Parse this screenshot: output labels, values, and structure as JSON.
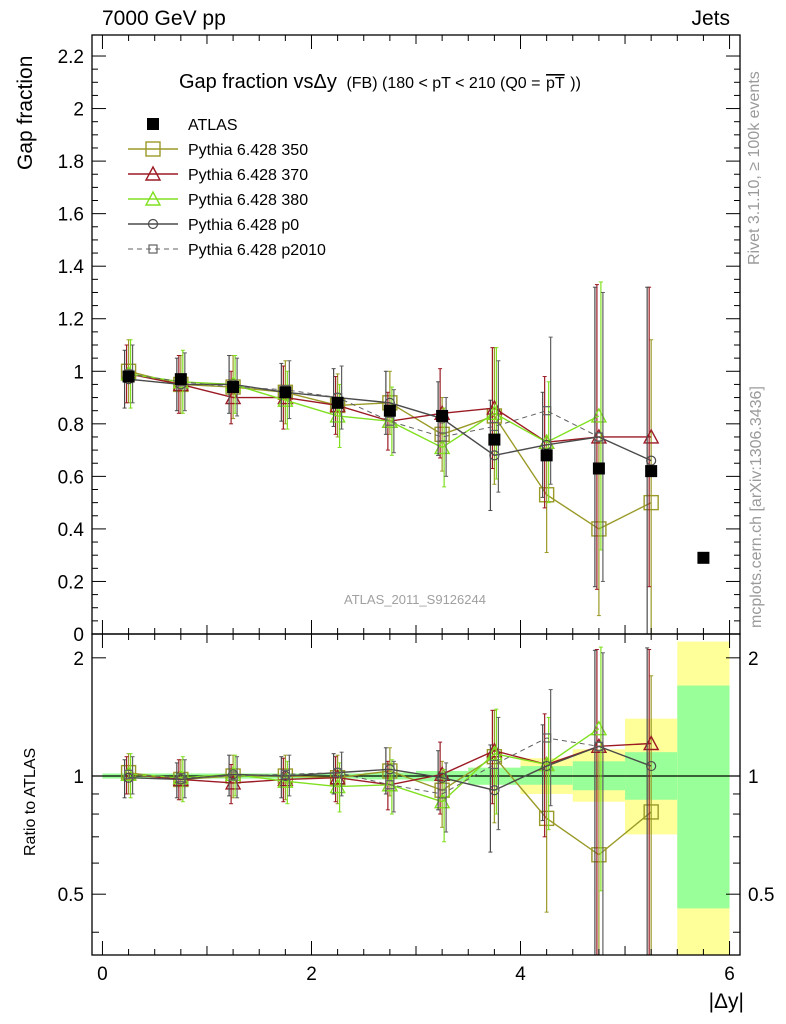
{
  "header": {
    "left": "7000 GeV pp",
    "right": "Jets"
  },
  "side_labels": {
    "rivet": "Rivet 3.1.10, ≥ 100k events",
    "mcplots": "mcplots.cern.ch [arXiv:1306.3436]"
  },
  "watermark": "ATLAS_2011_S9126244",
  "colors": {
    "ATLAS": "#000000",
    "py350": "#9a9a28",
    "py370": "#9b1a24",
    "py380": "#80e020",
    "pyp0": "#4a4a4a",
    "pyp2010": "#606060",
    "band_inner": "#99ff99",
    "band_outer": "#ffff99"
  },
  "chart_data": [
    {
      "type": "line",
      "title": "Gap fraction vsΔy (FB) (180 < pT < 210 (Q0 =pT))",
      "title_main": "Gap fraction vsΔy",
      "title_sub": "(FB) (180 < pT < 210 (Q0 =",
      "title_pt": "pT",
      "title_close": "))",
      "xlabel": "",
      "ylabel": "Gap fraction",
      "xlim": [
        -0.1,
        6.1
      ],
      "ylim": [
        0,
        2.28
      ],
      "yticks": [
        0,
        0.2,
        0.4,
        0.6,
        0.8,
        1,
        1.2,
        1.4,
        1.6,
        1.8,
        2,
        2.2
      ],
      "ytick_labels": [
        "0",
        "0.2",
        "0.4",
        "0.6",
        "0.8",
        "1",
        "1.2",
        "1.4",
        "1.6",
        "1.8",
        "2",
        "2.2"
      ],
      "legend": "top-left",
      "series": [
        {
          "name": "ATLAS",
          "marker": "filled-square",
          "line": "none",
          "color_key": "ATLAS",
          "x": [
            0.25,
            0.75,
            1.25,
            1.75,
            2.25,
            2.75,
            3.25,
            3.75,
            4.25,
            4.75,
            5.25,
            5.75
          ],
          "y": [
            0.98,
            0.97,
            0.94,
            0.92,
            0.88,
            0.85,
            0.83,
            0.74,
            0.68,
            0.63,
            0.62,
            0.29
          ]
        },
        {
          "name": "Pythia 6.428 350",
          "marker": "open-square",
          "line": "solid",
          "color_key": "py350",
          "x": [
            0.25,
            0.75,
            1.25,
            1.75,
            2.25,
            2.75,
            3.25,
            3.75,
            4.25,
            4.75,
            5.25
          ],
          "y": [
            1.0,
            0.95,
            0.94,
            0.92,
            0.87,
            0.88,
            0.76,
            0.83,
            0.53,
            0.4,
            0.5
          ],
          "err": [
            0.12,
            0.11,
            0.12,
            0.12,
            0.12,
            0.12,
            0.14,
            0.26,
            0.22,
            0.33,
            0.62
          ]
        },
        {
          "name": "Pythia 6.428 370",
          "marker": "open-triangle",
          "line": "solid",
          "color_key": "py370",
          "x": [
            0.25,
            0.75,
            1.25,
            1.75,
            2.25,
            2.75,
            3.25,
            3.75,
            4.25,
            4.75,
            5.25
          ],
          "y": [
            0.99,
            0.95,
            0.9,
            0.9,
            0.87,
            0.81,
            0.84,
            0.86,
            0.73,
            0.75,
            0.75
          ],
          "err": [
            0.11,
            0.11,
            0.1,
            0.12,
            0.11,
            0.11,
            0.17,
            0.23,
            0.25,
            0.58,
            0.57
          ]
        },
        {
          "name": "Pythia 6.428 380",
          "marker": "open-triangle",
          "line": "solid",
          "color_key": "py380",
          "x": [
            0.25,
            0.75,
            1.25,
            1.75,
            2.25,
            2.75,
            3.25,
            3.75,
            4.25,
            4.75
          ],
          "y": [
            0.99,
            0.96,
            0.95,
            0.89,
            0.83,
            0.81,
            0.71,
            0.84,
            0.73,
            0.83
          ],
          "err": [
            0.13,
            0.12,
            0.11,
            0.11,
            0.12,
            0.13,
            0.15,
            0.25,
            0.23,
            0.51
          ]
        },
        {
          "name": "Pythia 6.428 p0",
          "marker": "open-circle",
          "line": "solid",
          "color_key": "pyp0",
          "x": [
            0.25,
            0.75,
            1.25,
            1.75,
            2.25,
            2.75,
            3.25,
            3.75,
            4.25,
            4.75,
            5.25
          ],
          "y": [
            0.97,
            0.95,
            0.95,
            0.92,
            0.9,
            0.88,
            0.82,
            0.68,
            0.72,
            0.75,
            0.66
          ],
          "err": [
            0.11,
            0.1,
            0.11,
            0.11,
            0.11,
            0.12,
            0.14,
            0.21,
            0.2,
            0.57,
            0.66
          ]
        },
        {
          "name": "Pythia 6.428 p2010",
          "marker": "open-square-small",
          "line": "dashed",
          "color_key": "pyp2010",
          "x": [
            0.25,
            0.75,
            1.25,
            1.75,
            2.25,
            2.75,
            3.25,
            3.75,
            4.25,
            4.75
          ],
          "y": [
            0.99,
            0.96,
            0.94,
            0.93,
            0.9,
            0.81,
            0.75,
            0.79,
            0.85,
            0.75
          ],
          "err": [
            0.11,
            0.11,
            0.11,
            0.11,
            0.12,
            0.12,
            0.15,
            0.25,
            0.28,
            0.55
          ]
        }
      ]
    },
    {
      "type": "line",
      "xlabel": "|Δy|",
      "ylabel": "Ratio to ATLAS",
      "xlim": [
        -0.1,
        6.1
      ],
      "ylim": [
        0.35,
        2.3
      ],
      "log_y": true,
      "xticks": [
        0,
        2,
        4,
        6
      ],
      "xtick_labels": [
        "0",
        "2",
        "4",
        "6"
      ],
      "yticks": [
        0.5,
        1,
        2
      ],
      "ytick_labels": [
        "0.5",
        "1",
        "2"
      ],
      "bands": {
        "x_edges": [
          0.0,
          0.5,
          1.0,
          1.5,
          2.0,
          2.5,
          3.0,
          3.5,
          4.0,
          4.5,
          5.0,
          5.5,
          6.0
        ],
        "inner_lo": [
          0.985,
          0.985,
          0.985,
          0.985,
          0.985,
          0.98,
          0.97,
          0.95,
          0.95,
          0.92,
          0.87,
          0.46
        ],
        "inner_hi": [
          1.015,
          1.015,
          1.015,
          1.015,
          1.015,
          1.02,
          1.03,
          1.05,
          1.06,
          1.09,
          1.15,
          1.7
        ],
        "outer_lo": [
          0.985,
          0.985,
          0.985,
          0.985,
          0.985,
          0.98,
          0.97,
          0.95,
          0.9,
          0.86,
          0.71,
          0.35
        ],
        "outer_hi": [
          1.015,
          1.015,
          1.015,
          1.015,
          1.015,
          1.02,
          1.03,
          1.05,
          1.11,
          1.17,
          1.4,
          2.2
        ]
      },
      "series": [
        {
          "name": "Pythia 6.428 350",
          "color_key": "py350",
          "marker": "open-square",
          "line": "solid",
          "x": [
            0.25,
            0.75,
            1.25,
            1.75,
            2.25,
            2.75,
            3.25,
            3.75,
            4.25,
            4.75,
            5.25
          ],
          "y": [
            1.02,
            0.98,
            1.0,
            1.0,
            0.99,
            1.03,
            0.92,
            1.12,
            0.78,
            0.63,
            0.81
          ],
          "lo": [
            0.9,
            0.87,
            0.88,
            0.87,
            0.85,
            0.89,
            0.74,
            0.76,
            0.45,
            0.11,
            0.0
          ],
          "hi": [
            1.14,
            1.1,
            1.13,
            1.13,
            1.13,
            1.18,
            1.09,
            1.47,
            1.11,
            1.15,
            1.8
          ]
        },
        {
          "name": "Pythia 6.428 370",
          "color_key": "py370",
          "marker": "open-triangle",
          "line": "solid",
          "x": [
            0.25,
            0.75,
            1.25,
            1.75,
            2.25,
            2.75,
            3.25,
            3.75,
            4.25,
            4.75,
            5.25
          ],
          "y": [
            1.01,
            0.98,
            0.96,
            0.98,
            0.99,
            0.95,
            1.01,
            1.16,
            1.07,
            1.19,
            1.21
          ],
          "lo": [
            0.9,
            0.87,
            0.85,
            0.86,
            0.86,
            0.82,
            0.8,
            0.85,
            0.7,
            0.28,
            0.3
          ],
          "hi": [
            1.12,
            1.1,
            1.07,
            1.11,
            1.12,
            1.09,
            1.22,
            1.47,
            1.44,
            2.1,
            2.1
          ]
        },
        {
          "name": "Pythia 6.428 380",
          "color_key": "py380",
          "marker": "open-triangle",
          "line": "solid",
          "x": [
            0.25,
            0.75,
            1.25,
            1.75,
            2.25,
            2.75,
            3.25,
            3.75,
            4.25,
            4.75
          ],
          "y": [
            1.01,
            0.99,
            1.01,
            0.97,
            0.94,
            0.95,
            0.86,
            1.14,
            1.07,
            1.32
          ],
          "lo": [
            0.88,
            0.86,
            0.89,
            0.85,
            0.81,
            0.8,
            0.68,
            0.8,
            0.73,
            0.51
          ],
          "hi": [
            1.14,
            1.12,
            1.13,
            1.09,
            1.08,
            1.1,
            1.04,
            1.48,
            1.41,
            2.13
          ]
        },
        {
          "name": "Pythia 6.428 p0",
          "color_key": "pyp0",
          "marker": "open-circle",
          "line": "solid",
          "x": [
            0.25,
            0.75,
            1.25,
            1.75,
            2.25,
            2.75,
            3.25,
            3.75,
            4.25,
            4.75,
            5.25
          ],
          "y": [
            0.99,
            0.98,
            1.01,
            1.0,
            1.02,
            1.04,
            0.99,
            0.92,
            1.06,
            1.19,
            1.06
          ],
          "lo": [
            0.88,
            0.88,
            0.89,
            0.88,
            0.9,
            0.9,
            0.82,
            0.64,
            0.77,
            0.29,
            0.0
          ],
          "hi": [
            1.1,
            1.08,
            1.13,
            1.12,
            1.14,
            1.18,
            1.16,
            1.2,
            1.35,
            2.09,
            2.12
          ]
        },
        {
          "name": "Pythia 6.428 p2010",
          "color_key": "pyp2010",
          "marker": "open-square-small",
          "line": "dashed",
          "x": [
            0.25,
            0.75,
            1.25,
            1.75,
            2.25,
            2.75,
            3.25,
            3.75,
            4.25,
            4.75
          ],
          "y": [
            1.01,
            0.99,
            1.0,
            1.01,
            1.02,
            0.95,
            0.9,
            1.07,
            1.25,
            1.19
          ],
          "lo": [
            0.9,
            0.88,
            0.88,
            0.89,
            0.89,
            0.81,
            0.72,
            0.73,
            0.84,
            0.32
          ],
          "hi": [
            1.12,
            1.1,
            1.12,
            1.13,
            1.15,
            1.09,
            1.08,
            1.41,
            1.66,
            2.06
          ]
        }
      ]
    }
  ]
}
